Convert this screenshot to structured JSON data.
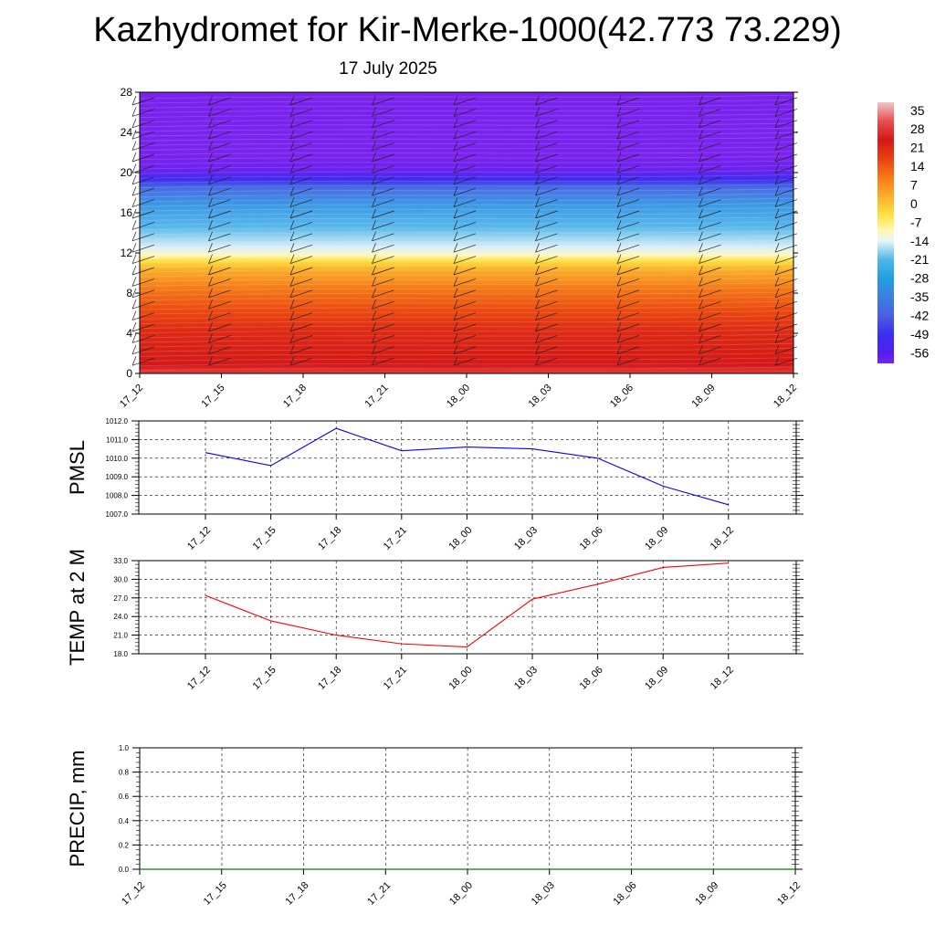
{
  "title": "Kazhydromet for Kir-Merke-1000(42.773 73.229)",
  "subtitle": "17 July 2025",
  "chart_data": [
    {
      "type": "heatmap",
      "name": "cross-section",
      "x_ticks": [
        "17_12",
        "17_15",
        "17_18",
        "17_21",
        "18_00",
        "18_03",
        "18_06",
        "18_09",
        "18_12"
      ],
      "y_ticks": [
        "0",
        "4",
        "8",
        "12",
        "16",
        "20",
        "24",
        "28"
      ],
      "ylim": [
        0,
        28
      ],
      "colorbar": {
        "labels": [
          "35",
          "28",
          "21",
          "14",
          "7",
          "0",
          "-7",
          "-14",
          "-21",
          "-28",
          "-35",
          "-42",
          "-49",
          "-56"
        ],
        "stops": [
          {
            "v": 38,
            "c": "#f0c8c8"
          },
          {
            "v": 31,
            "c": "#e85050"
          },
          {
            "v": 24,
            "c": "#d41818"
          },
          {
            "v": 17,
            "c": "#e84010"
          },
          {
            "v": 10,
            "c": "#f87818"
          },
          {
            "v": 3,
            "c": "#fcac28"
          },
          {
            "v": -4,
            "c": "#fde040"
          },
          {
            "v": -10,
            "c": "#fff8b0"
          },
          {
            "v": -14,
            "c": "#e8f4fa"
          },
          {
            "v": -21,
            "c": "#50b8e8"
          },
          {
            "v": -28,
            "c": "#20a0e0"
          },
          {
            "v": -35,
            "c": "#3c80e0"
          },
          {
            "v": -42,
            "c": "#4a60e0"
          },
          {
            "v": -49,
            "c": "#3a30f0"
          },
          {
            "v": -56,
            "c": "#5020f0"
          },
          {
            "v": -60,
            "c": "#7a22ee"
          }
        ]
      }
    },
    {
      "type": "line",
      "ylabel": "PMSL",
      "categories": [
        "17_12",
        "17_15",
        "17_18",
        "17_21",
        "18_00",
        "18_03",
        "18_06",
        "18_09",
        "18_12"
      ],
      "values": [
        1010.3,
        1009.6,
        1011.6,
        1010.4,
        1010.6,
        1010.5,
        1010.0,
        1008.5,
        1007.5
      ],
      "ylim": [
        1007.0,
        1012.0
      ],
      "y_ticks": [
        "1007.0",
        "1008.0",
        "1009.0",
        "1010.0",
        "1011.0",
        "1012.0"
      ],
      "color": "#0000ff",
      "grid": true
    },
    {
      "type": "line",
      "ylabel": "TEMP at 2 M",
      "categories": [
        "17_12",
        "17_15",
        "17_18",
        "17_21",
        "18_00",
        "18_03",
        "18_06",
        "18_09",
        "18_12"
      ],
      "values": [
        27.4,
        23.3,
        21.0,
        19.6,
        19.1,
        26.8,
        29.2,
        31.9,
        32.6
      ],
      "ylim": [
        18.0,
        33.0
      ],
      "y_ticks": [
        "18.0",
        "21.0",
        "24.0",
        "27.0",
        "30.0",
        "33.0"
      ],
      "color": "#ff0000",
      "grid": true
    },
    {
      "type": "line",
      "ylabel": "PRECIP, mm",
      "categories": [
        "17_12",
        "17_15",
        "17_18",
        "17_21",
        "18_00",
        "18_03",
        "18_06",
        "18_09",
        "18_12"
      ],
      "values": [
        0,
        0,
        0,
        0,
        0,
        0,
        0,
        0,
        0
      ],
      "ylim": [
        0,
        1.0
      ],
      "y_ticks": [
        "0.0",
        "0.2",
        "0.4",
        "0.6",
        "0.8",
        "1.0"
      ],
      "color": "#008000",
      "grid": true
    }
  ]
}
